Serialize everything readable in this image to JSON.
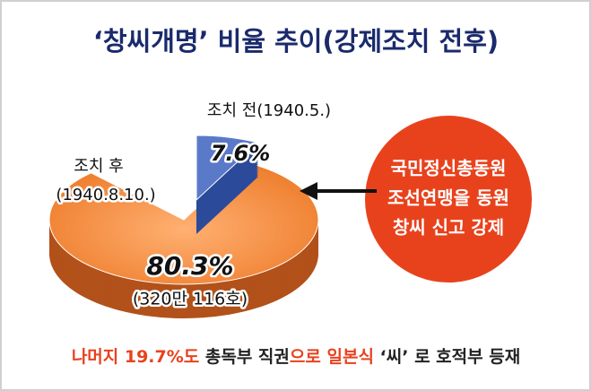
{
  "chart_data": {
    "type": "pie",
    "title": "‘창씨개명’ 비율 추이(강제조치 전후)",
    "labels": [
      [
        "조치 전(1940.5.)"
      ],
      [
        "조치 후",
        "(1940.8.10.)"
      ]
    ],
    "values": [
      7.6,
      80.3
    ],
    "value_labels": [
      "7.6%",
      "80.3%"
    ],
    "colors": [
      "#5b79c9",
      "#f08a3c"
    ],
    "annotation": "(320만 116호)",
    "callout": [
      "국민정신총동원",
      "조선연맹을 동원",
      "창씨 신고 강제"
    ],
    "footnote": [
      "나머지 19.7%도",
      " 총독부 직권",
      "으로 일본식",
      " ‘씨’ 로 호적부 등재"
    ]
  }
}
